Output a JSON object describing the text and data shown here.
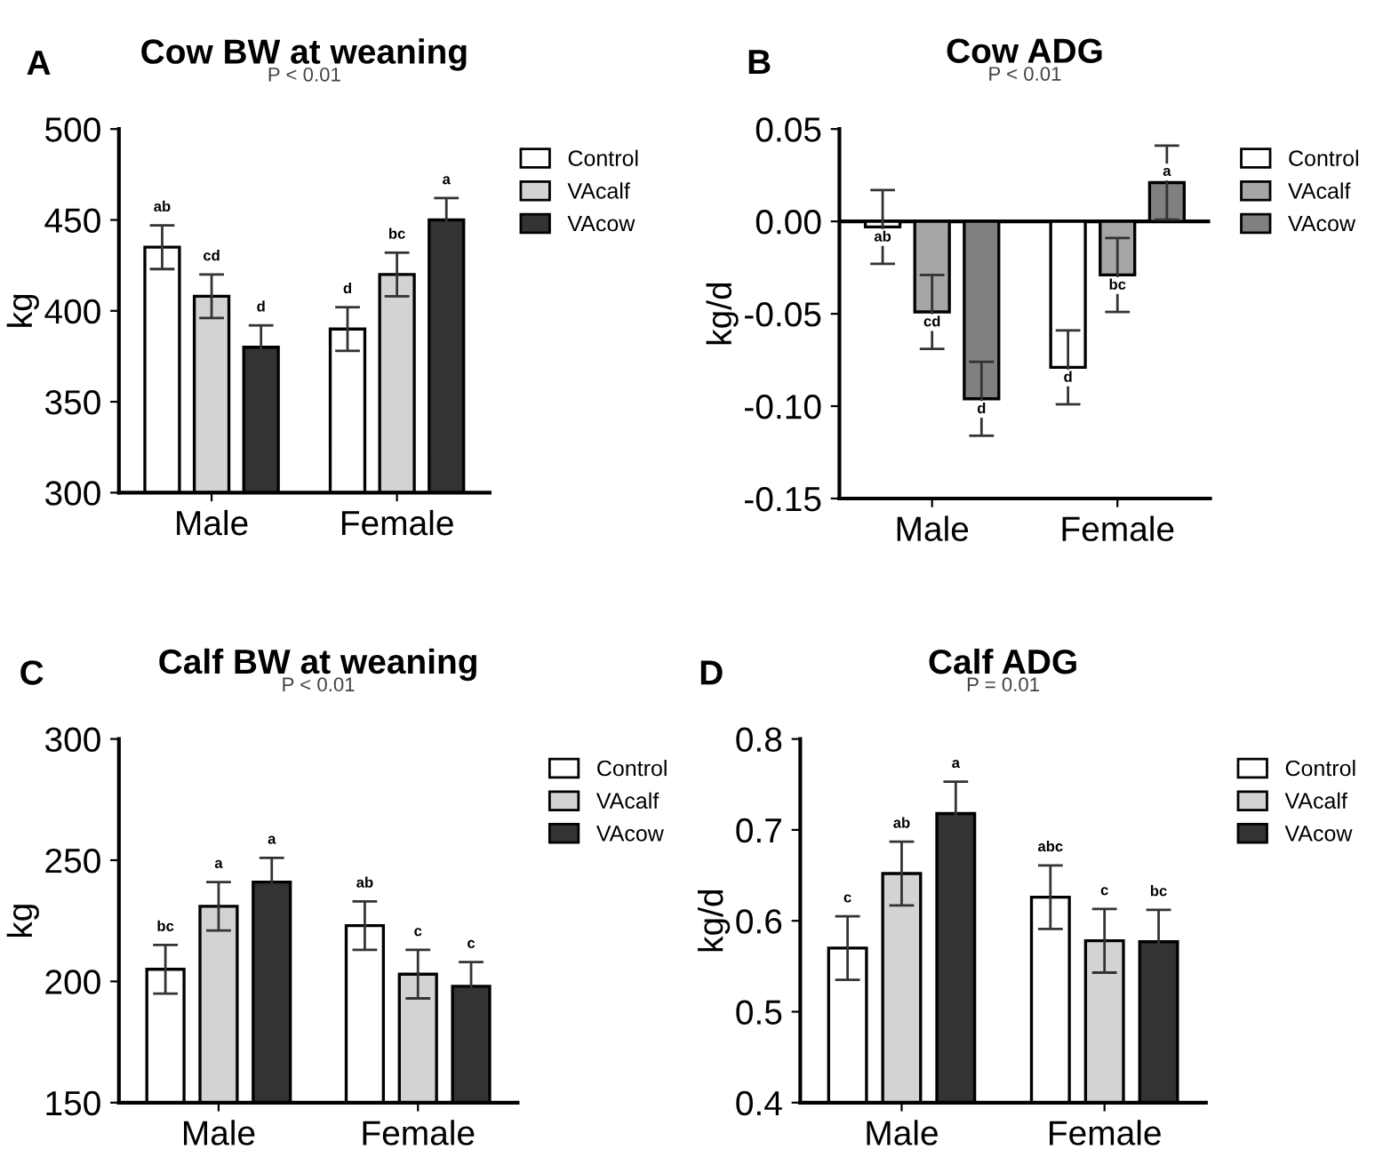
{
  "chart_data": [
    {
      "type": "bar",
      "title": "Cow BW at weaning",
      "subtitle": "P < 0.01",
      "ylabel": "kg",
      "annotations": [
        "A"
      ],
      "categories": [
        "Male",
        "Female"
      ],
      "ylim": [
        300,
        500
      ],
      "yticks": [
        300,
        350,
        400,
        450,
        500
      ],
      "grid": false,
      "legend": "right",
      "series": [
        {
          "name": "Control",
          "color": "#ffffff",
          "values": [
            435,
            390
          ],
          "errors": [
            12,
            12
          ],
          "value_labels": [
            "ab",
            "d"
          ]
        },
        {
          "name": "VAcalf",
          "color": "#d3d3d3",
          "values": [
            408,
            420
          ],
          "errors": [
            12,
            12
          ],
          "value_labels": [
            "cd",
            "bc"
          ]
        },
        {
          "name": "VAcow",
          "color": "#333333",
          "values": [
            380,
            450
          ],
          "errors": [
            12,
            12
          ],
          "value_labels": [
            "d",
            "a"
          ]
        }
      ]
    },
    {
      "type": "bar",
      "title": "Cow ADG",
      "subtitle": "P < 0.01",
      "ylabel": "kg/d",
      "annotations": [
        "B"
      ],
      "categories": [
        "Male",
        "Female"
      ],
      "ylim": [
        -0.15,
        0.05
      ],
      "yticks": [
        {
          "value": -0.15,
          "label": "-0.15"
        },
        {
          "value": -0.1,
          "label": "-0.10"
        },
        {
          "value": -0.05,
          "label": "-0.05"
        },
        {
          "value": 0,
          "label": "0.00"
        },
        {
          "value": 0.05,
          "label": "0.05"
        }
      ],
      "grid": false,
      "legend": "right",
      "ref_lines": [
        {
          "axis": "y",
          "value": 0,
          "color": "#000000"
        }
      ],
      "series": [
        {
          "name": "Control",
          "color": "#ffffff",
          "values": [
            -0.003,
            -0.079
          ],
          "errors": [
            0.02,
            0.02
          ],
          "value_labels": [
            "ab",
            "d"
          ]
        },
        {
          "name": "VAcalf",
          "color": "#a6a6a6",
          "values": [
            -0.049,
            -0.029
          ],
          "errors": [
            0.02,
            0.02
          ],
          "value_labels": [
            "cd",
            "bc"
          ]
        },
        {
          "name": "VAcow",
          "color": "#808080",
          "values": [
            -0.096,
            0.021
          ],
          "errors": [
            0.02,
            0.02
          ],
          "value_labels": [
            "d",
            "a"
          ]
        }
      ]
    },
    {
      "type": "bar",
      "title": "Calf BW at weaning",
      "subtitle": "P < 0.01",
      "ylabel": "kg",
      "annotations": [
        "C"
      ],
      "categories": [
        "Male",
        "Female"
      ],
      "ylim": [
        150,
        300
      ],
      "yticks": [
        150,
        200,
        250,
        300
      ],
      "grid": false,
      "legend": "right",
      "series": [
        {
          "name": "Control",
          "color": "#ffffff",
          "values": [
            205,
            223
          ],
          "errors": [
            10,
            10
          ],
          "value_labels": [
            "bc",
            "ab"
          ]
        },
        {
          "name": "VAcalf",
          "color": "#d3d3d3",
          "values": [
            231,
            203
          ],
          "errors": [
            10,
            10
          ],
          "value_labels": [
            "a",
            "c"
          ]
        },
        {
          "name": "VAcow",
          "color": "#333333",
          "values": [
            241,
            198
          ],
          "errors": [
            10,
            10
          ],
          "value_labels": [
            "a",
            "c"
          ]
        }
      ]
    },
    {
      "type": "bar",
      "title": "Calf ADG",
      "subtitle": "P = 0.01",
      "ylabel": "kg/d",
      "annotations": [
        "D"
      ],
      "categories": [
        "Male",
        "Female"
      ],
      "ylim": [
        0.4,
        0.8
      ],
      "yticks": [
        0.4,
        0.5,
        0.6,
        0.7,
        0.8
      ],
      "grid": false,
      "legend": "right",
      "series": [
        {
          "name": "Control",
          "color": "#ffffff",
          "values": [
            0.57,
            0.626
          ],
          "errors": [
            0.035,
            0.035
          ],
          "value_labels": [
            "c",
            "abc"
          ]
        },
        {
          "name": "VAcalf",
          "color": "#d3d3d3",
          "values": [
            0.652,
            0.578
          ],
          "errors": [
            0.035,
            0.035
          ],
          "value_labels": [
            "ab",
            "c"
          ]
        },
        {
          "name": "VAcow",
          "color": "#333333",
          "values": [
            0.718,
            0.577
          ],
          "errors": [
            0.035,
            0.035
          ],
          "value_labels": [
            "a",
            "bc"
          ]
        }
      ]
    }
  ]
}
